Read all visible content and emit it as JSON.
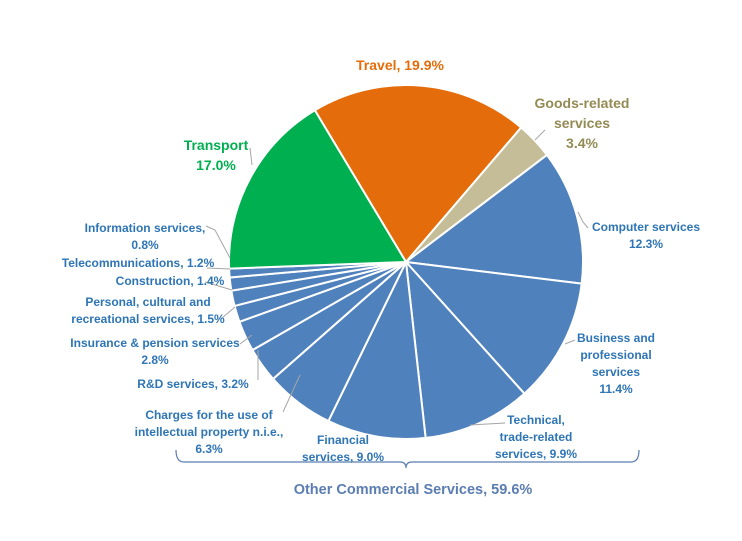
{
  "chart_data": {
    "type": "pie",
    "title": "",
    "start_angle_deg": 0,
    "direction": "clockwise",
    "slices": [
      {
        "key": "travel",
        "label_lines": [
          "Travel, 19.9%"
        ],
        "value": 19.9,
        "color": "#E46C0A",
        "label_color": "#E46C0A"
      },
      {
        "key": "goods",
        "label_lines": [
          "Goods-related",
          "services",
          "3.4%"
        ],
        "value": 3.4,
        "color": "#C4BD97",
        "label_color": "#948A54"
      },
      {
        "key": "computer",
        "label_lines": [
          "Computer services",
          "12.3%"
        ],
        "value": 12.3,
        "color": "#4F81BD",
        "label_color": "#2E75B6"
      },
      {
        "key": "business",
        "label_lines": [
          "Business and",
          "professional",
          "services",
          "11.4%"
        ],
        "value": 11.4,
        "color": "#4F81BD",
        "label_color": "#2E75B6"
      },
      {
        "key": "technical",
        "label_lines": [
          "Technical,",
          "trade-related",
          "services, 9.9%"
        ],
        "value": 9.9,
        "color": "#4F81BD",
        "label_color": "#2E75B6"
      },
      {
        "key": "financial",
        "label_lines": [
          "Financial",
          "services, 9.0%"
        ],
        "value": 9.0,
        "color": "#4F81BD",
        "label_color": "#2E75B6"
      },
      {
        "key": "ip",
        "label_lines": [
          "Charges for the use of",
          "intellectual property n.i.e.,",
          "6.3%"
        ],
        "value": 6.3,
        "color": "#4F81BD",
        "label_color": "#2E75B6"
      },
      {
        "key": "rd",
        "label_lines": [
          "R&D services, 3.2%"
        ],
        "value": 3.2,
        "color": "#4F81BD",
        "label_color": "#2E75B6"
      },
      {
        "key": "insurance",
        "label_lines": [
          "Insurance & pension services",
          "2.8%"
        ],
        "value": 2.8,
        "color": "#4F81BD",
        "label_color": "#2E75B6"
      },
      {
        "key": "personal",
        "label_lines": [
          "Personal, cultural and",
          "recreational services, 1.5%"
        ],
        "value": 1.5,
        "color": "#4F81BD",
        "label_color": "#2E75B6"
      },
      {
        "key": "construction",
        "label_lines": [
          "Construction, 1.4%"
        ],
        "value": 1.4,
        "color": "#4F81BD",
        "label_color": "#2E75B6"
      },
      {
        "key": "telecom",
        "label_lines": [
          "Telecommunications, 1.2%"
        ],
        "value": 1.2,
        "color": "#4F81BD",
        "label_color": "#2E75B6"
      },
      {
        "key": "information",
        "label_lines": [
          "Information services,",
          "0.8%"
        ],
        "value": 0.8,
        "color": "#4F81BD",
        "label_color": "#2E75B6"
      },
      {
        "key": "transport",
        "label_lines": [
          "Transport",
          "17.0%"
        ],
        "value": 17.0,
        "color": "#00B050",
        "label_color": "#00B050"
      }
    ],
    "group_annotation": {
      "label": "Other Commercial Services, 59.6%",
      "value": 59.6,
      "color": "#5B7DB1"
    },
    "legend": "none"
  }
}
